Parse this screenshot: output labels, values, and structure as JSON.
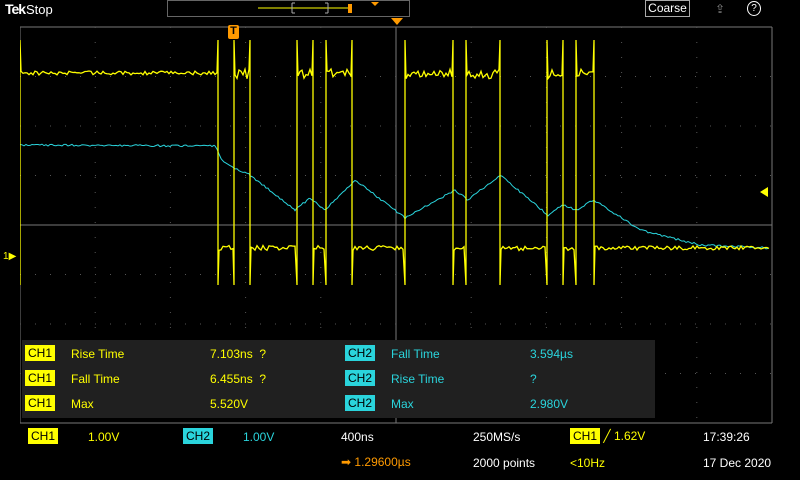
{
  "header": {
    "logo": "Tek",
    "status": "Stop",
    "coarse_label": "Coarse",
    "share_icon": "share-icon",
    "help_icon": "help-icon"
  },
  "colors": {
    "ch1": "#ffff00",
    "ch2": "#2ad4dc",
    "trigger": "#ff9a00"
  },
  "markers": {
    "trigger_label": "T",
    "ch1_marker": "1"
  },
  "measurements": [
    {
      "left": {
        "ch": "CH1",
        "name": "Rise Time",
        "value": "7.103ns  ?"
      },
      "right": {
        "ch": "CH2",
        "name": "Fall Time",
        "value": "3.594µs"
      }
    },
    {
      "left": {
        "ch": "CH1",
        "name": "Fall Time",
        "value": "6.455ns  ?"
      },
      "right": {
        "ch": "CH2",
        "name": "Rise Time",
        "value": "?"
      }
    },
    {
      "left": {
        "ch": "CH1",
        "name": "Max",
        "value": "5.520V"
      },
      "right": {
        "ch": "CH2",
        "name": "Max",
        "value": "2.980V"
      }
    }
  ],
  "footer": {
    "ch1_label": "CH1",
    "ch1_scale": "1.00V",
    "ch2_label": "CH2",
    "ch2_scale": "1.00V",
    "timebase": "400ns",
    "position": "1.29600µs",
    "sample_rate": "250MS/s",
    "record_length": "2000 points",
    "trigger_source": "CH1",
    "trigger_level": "1.62V",
    "trigger_freq": "<10Hz",
    "time": "17:39:26",
    "date": "17 Dec 2020"
  }
}
